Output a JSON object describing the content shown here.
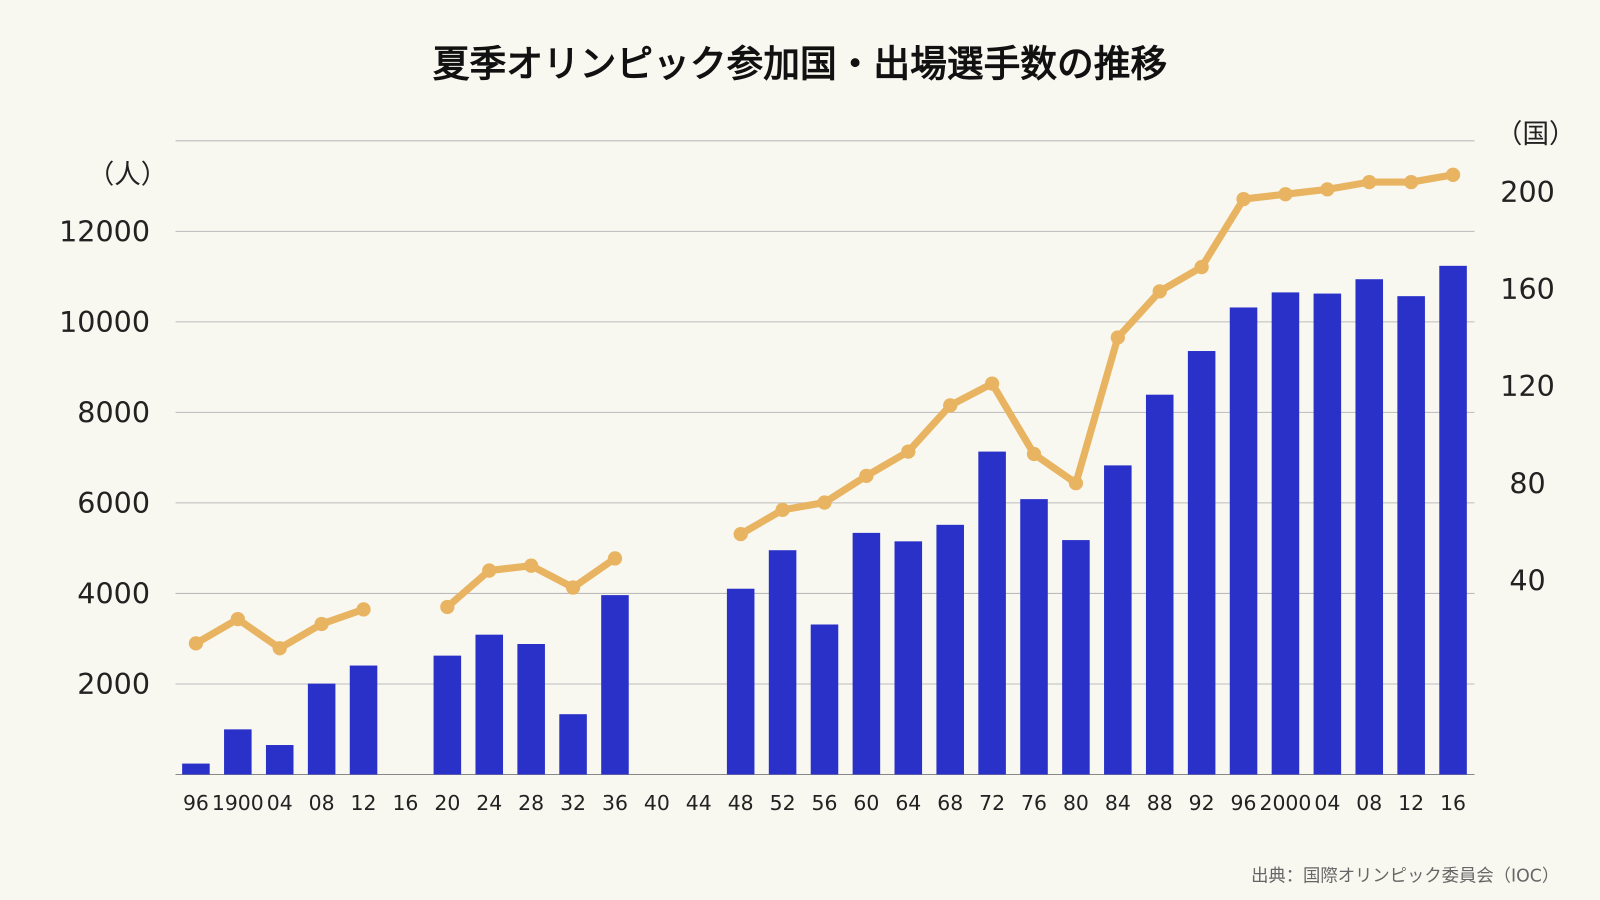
{
  "chart_data": {
    "type": "bar+line",
    "title": "夏季オリンピック参加国・出場選手数の推移",
    "source": "出典：国際オリンピック委員会（IOC）",
    "left_axis": {
      "unit_label": "（人）",
      "ticks": [
        2000,
        4000,
        6000,
        8000,
        10000,
        12000
      ],
      "range": [
        0,
        14000
      ]
    },
    "right_axis": {
      "unit_label": "（国）",
      "ticks": [
        40,
        80,
        120,
        160,
        200
      ],
      "range": [
        -40,
        221
      ]
    },
    "grid": true,
    "categories": [
      "96",
      "1900",
      "04",
      "08",
      "12",
      "16",
      "20",
      "24",
      "28",
      "32",
      "36",
      "40",
      "44",
      "48",
      "52",
      "56",
      "60",
      "64",
      "68",
      "72",
      "76",
      "80",
      "84",
      "88",
      "92",
      "96",
      "2000",
      "04",
      "08",
      "12",
      "16"
    ],
    "series": [
      {
        "type": "bar",
        "axis": "left",
        "color": "#2a31c9",
        "values": [
          241,
          997,
          651,
          2008,
          2407,
          null,
          2626,
          3089,
          2883,
          1332,
          3963,
          null,
          null,
          4104,
          4955,
          3314,
          5338,
          5151,
          5516,
          7134,
          6084,
          5179,
          6829,
          8391,
          9356,
          10318,
          10651,
          10625,
          10942,
          10568,
          11238
        ]
      },
      {
        "type": "line",
        "axis": "right",
        "color": "#e8b462",
        "values": [
          14,
          24,
          12,
          22,
          28,
          null,
          29,
          44,
          46,
          37,
          49,
          null,
          null,
          59,
          69,
          72,
          83,
          93,
          112,
          121,
          92,
          80,
          140,
          159,
          169,
          197,
          199,
          201,
          204,
          204,
          207
        ]
      }
    ]
  }
}
